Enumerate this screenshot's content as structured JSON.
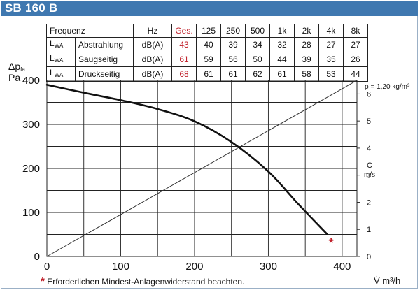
{
  "header": {
    "title": "SB 160 B"
  },
  "noise_table": {
    "columns": [
      "Frequenz",
      "Hz",
      "Ges.",
      "125",
      "250",
      "500",
      "1k",
      "2k",
      "4k",
      "8k"
    ],
    "rows": [
      {
        "label_main": "L",
        "label_sub": "WA",
        "name": "Abstrahlung",
        "unit": "dB(A)",
        "total": "43",
        "values": [
          "40",
          "39",
          "34",
          "32",
          "28",
          "27",
          "27"
        ]
      },
      {
        "label_main": "L",
        "label_sub": "WA",
        "name": "Saugseitig",
        "unit": "dB(A)",
        "total": "61",
        "values": [
          "59",
          "56",
          "50",
          "44",
          "39",
          "35",
          "26"
        ]
      },
      {
        "label_main": "L",
        "label_sub": "WA",
        "name": "Druckseitig",
        "unit": "dB(A)",
        "total": "68",
        "values": [
          "61",
          "61",
          "62",
          "61",
          "58",
          "53",
          "44"
        ]
      }
    ]
  },
  "chart_data": {
    "type": "line",
    "title": "",
    "xlabel": "V̇ m³/h",
    "ylabel_main": "Δp",
    "ylabel_sub": "fa",
    "ylabel_unit": "Pa",
    "xlim": [
      0,
      420
    ],
    "ylim": [
      0,
      400
    ],
    "x_ticks": [
      "0",
      "100",
      "200",
      "300",
      "400"
    ],
    "x_tick_values": [
      0,
      100,
      200,
      300,
      400
    ],
    "y_ticks": [
      "0",
      "100",
      "200",
      "300",
      "400"
    ],
    "y_tick_values": [
      0,
      100,
      200,
      300,
      400
    ],
    "density_note": "ρ = 1,20 kg/m³",
    "secondary_axis": {
      "label": "C",
      "unit": "m/s",
      "ticks": [
        "0",
        "1",
        "2",
        "3",
        "4",
        "5",
        "6"
      ],
      "tick_values": [
        0,
        1,
        2,
        3,
        4,
        5,
        6
      ],
      "range": [
        0,
        6.5
      ]
    },
    "series": [
      {
        "name": "Kennlinie",
        "x": [
          0,
          50,
          100,
          150,
          200,
          250,
          300,
          340,
          380
        ],
        "y": [
          390,
          372,
          355,
          335,
          307,
          260,
          193,
          120,
          50
        ]
      },
      {
        "name": "Luftgeschwindigkeit C",
        "x": [
          0,
          420
        ],
        "y": [
          0,
          6.5
        ],
        "axis": "secondary"
      }
    ],
    "marker": {
      "x": 385,
      "y": 33,
      "symbol": "*"
    },
    "footnote": "Erforderlichen Mindest-Anlagenwiderstand beachten."
  },
  "colors": {
    "title_bar": "#3f78b0",
    "accent_red": "#c0202a",
    "grid": "#222222"
  }
}
